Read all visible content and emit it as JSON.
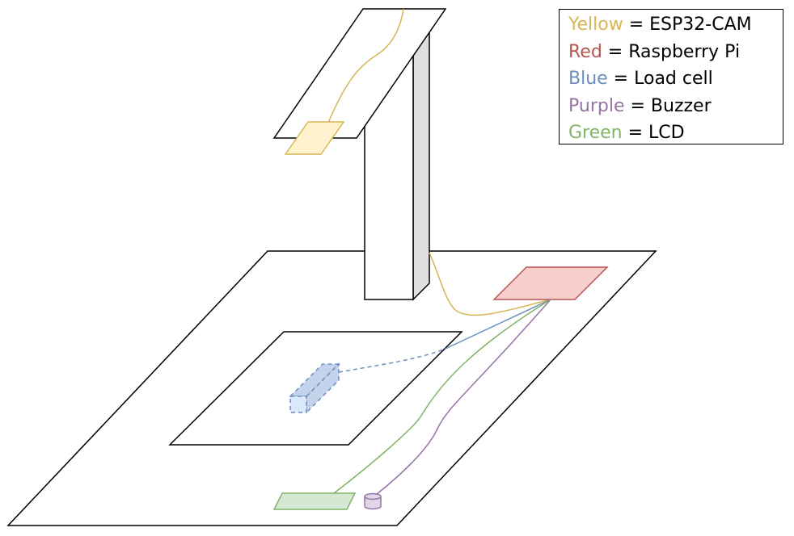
{
  "colors": {
    "yellow": "#d6b656",
    "yellow_fill": "#fff2cc",
    "red": "#b85450",
    "red_fill": "#f8cecc",
    "blue": "#6c8ebf",
    "blue_fill": "#dae8fc",
    "purple": "#9673a6",
    "purple_fill": "#e1d5e7",
    "green": "#82b366",
    "green_fill": "#d5e8d4",
    "pillar_side": "#e0e0e0"
  },
  "legend": {
    "items": [
      {
        "color_word": "Yellow",
        "separator": " = ",
        "component": "ESP32-CAM"
      },
      {
        "color_word": "Red",
        "separator": " = ",
        "component": "Raspberry Pi"
      },
      {
        "color_word": "Blue",
        "separator": " = ",
        "component": "Load cell"
      },
      {
        "color_word": "Purple",
        "separator": " = ",
        "component": "Buzzer"
      },
      {
        "color_word": "Green",
        "separator": " = ",
        "component": "LCD"
      }
    ]
  }
}
